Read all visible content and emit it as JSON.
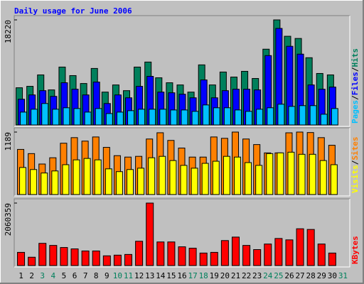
{
  "chart_data": {
    "type": "bar",
    "title": "Daily usage for June 2006",
    "categories": [
      "1",
      "2",
      "3",
      "4",
      "5",
      "6",
      "7",
      "8",
      "9",
      "10",
      "11",
      "12",
      "13",
      "14",
      "15",
      "16",
      "17",
      "18",
      "19",
      "20",
      "21",
      "22",
      "23",
      "24",
      "25",
      "26",
      "27",
      "28",
      "29",
      "30",
      "31"
    ],
    "category_colors": [
      "#000000",
      "#000000",
      "#00805c",
      "#00805c",
      "#000000",
      "#000000",
      "#000000",
      "#000000",
      "#000000",
      "#00805c",
      "#00805c",
      "#000000",
      "#000000",
      "#000000",
      "#000000",
      "#000000",
      "#00805c",
      "#00805c",
      "#000000",
      "#000000",
      "#000000",
      "#000000",
      "#000000",
      "#00805c",
      "#00805c",
      "#000000",
      "#000000",
      "#000000",
      "#000000",
      "#000000",
      "#00805c"
    ],
    "legend_separator": "/",
    "panels": [
      {
        "ylim": [
          0,
          18220
        ],
        "yticks": [
          18220
        ],
        "series": [
          {
            "name": "Hits",
            "color": "#00805c",
            "values": [
              6450,
              6700,
              8680,
              6080,
              10040,
              8560,
              7190,
              9800,
              5700,
              6940,
              5950,
              10040,
              10910,
              8180,
              7320,
              6940,
              5700,
              10420,
              6940,
              9180,
              8310,
              9300,
              8060,
              13140,
              18220,
              15380,
              15000,
              11660,
              8930,
              8680,
              null
            ]
          },
          {
            "name": "Files",
            "color": "#0000ff",
            "values": [
              4460,
              5210,
              5950,
              4960,
              7320,
              6200,
              5210,
              7440,
              3720,
              5210,
              4710,
              6700,
              8430,
              5700,
              5580,
              5330,
              4710,
              7810,
              4710,
              5950,
              6200,
              6200,
              6080,
              12030,
              16740,
              13640,
              12280,
              6940,
              6200,
              6570,
              null
            ]
          },
          {
            "name": "Pages",
            "color": "#00c0ff",
            "values": [
              2230,
              2730,
              3720,
              2730,
              2980,
              2850,
              2230,
              2850,
              1980,
              2230,
              2480,
              2730,
              2730,
              2730,
              2600,
              2600,
              2360,
              3470,
              2980,
              2980,
              2600,
              2360,
              2730,
              2980,
              3600,
              3220,
              3350,
              3350,
              1860,
              2850,
              null
            ]
          }
        ]
      },
      {
        "ylim": [
          0,
          1189
        ],
        "yticks": [
          1189
        ],
        "series": [
          {
            "name": "Sites",
            "color": "#ff8000",
            "values": [
              859,
              779,
              581,
              700,
              977,
              1083,
              1017,
              1096,
              898,
              740,
              713,
              727,
              1057,
              1176,
              1030,
              885,
              713,
              713,
              1096,
              1070,
              1189,
              1057,
              951,
              793,
              793,
              1175,
              1189,
              1180,
              1083,
              938,
              null
            ]
          },
          {
            "name": "Visits",
            "color": "#ffff00",
            "values": [
              515,
              476,
              410,
              449,
              568,
              660,
              687,
              660,
              489,
              436,
              476,
              502,
              700,
              727,
              647,
              555,
              502,
              594,
              634,
              727,
              713,
              608,
              555,
              779,
              793,
              806,
              766,
              766,
              647,
              568,
              null
            ]
          }
        ]
      },
      {
        "ylim": [
          0,
          2060359
        ],
        "yticks": [
          2060359
        ],
        "series": [
          {
            "name": "KBytes",
            "color": "#ff0000",
            "values": [
              435000,
              274700,
              732600,
              663900,
              595200,
              549400,
              480800,
              480800,
              320500,
              343400,
              366300,
              801300,
              2060359,
              778400,
              778400,
              618100,
              572300,
              412100,
              435000,
              824100,
              938600,
              663900,
              526500,
              709700,
              892800,
              847000,
              1213300,
              1190400,
              709700,
              412100,
              null
            ]
          }
        ]
      }
    ]
  }
}
